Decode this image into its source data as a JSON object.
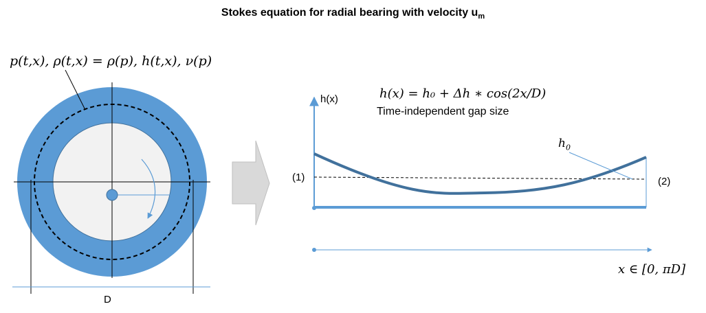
{
  "title": {
    "prefix": "Stokes equation for radial bearing with velocity u",
    "subscript": "m"
  },
  "left": {
    "variables_label": "p(t,x), ρ(t,x) = ρ(p), h(t,x), ν(p)",
    "diameter_label": "D"
  },
  "right": {
    "y_axis_label": "h(x)",
    "gap_formula": "h(x) = h₀ + Δh ∗ cos(2x/D)",
    "gap_caption": "Time-independent gap size",
    "h0_label": "h",
    "h0_subscript": "0",
    "point1_label": "(1)",
    "point2_label": "(2)",
    "x_axis_label": "x ∈ [0, πD]"
  },
  "colors": {
    "ring_blue": "#5b9bd5",
    "inner_fill": "#f2f2f2",
    "curve_blue": "#41719c",
    "arrow_gray": "#d9d9d9"
  }
}
